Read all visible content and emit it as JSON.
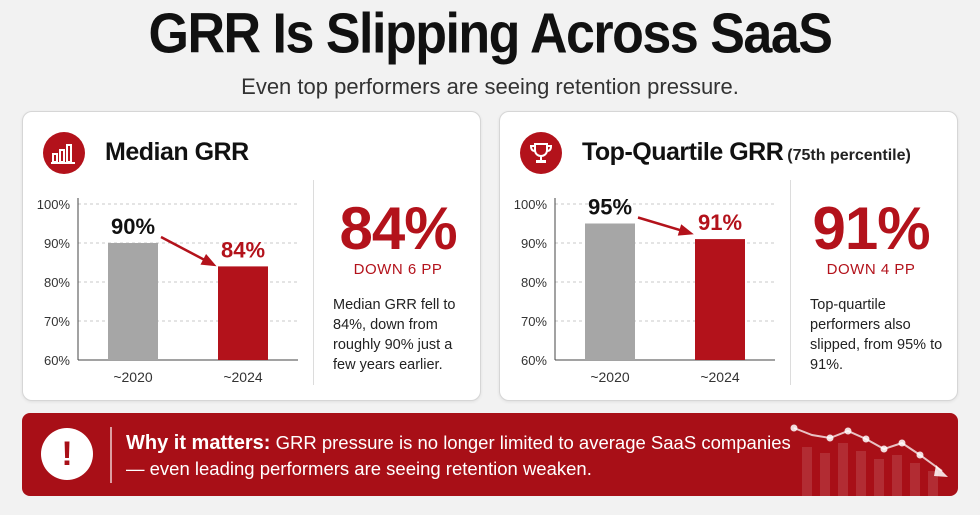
{
  "header": {
    "title": "GRR Is Slipping Across SaaS",
    "subtitle": "Even top performers are seeing retention pressure."
  },
  "colors": {
    "accent": "#b3121b",
    "gray_bar": "#a6a6a6",
    "banner": "#a80f17"
  },
  "panels": [
    {
      "icon": "bar-chart-icon",
      "title": "Median GRR",
      "title_sub": "",
      "stat": "84%",
      "stat_sub": "DOWN 6 PP",
      "description": "Median GRR fell to 84%, down from roughly 90% just a few years earlier."
    },
    {
      "icon": "trophy-icon",
      "title": "Top-Quartile GRR",
      "title_sub": "(75th percentile)",
      "stat": "91%",
      "stat_sub": "DOWN 4 PP",
      "description": "Top-quartile performers also slipped, from 95% to 91%."
    }
  ],
  "chart_data": [
    {
      "type": "bar",
      "categories": [
        "~2020",
        "~2024"
      ],
      "values": [
        90,
        84
      ],
      "data_labels": [
        "90%",
        "84%"
      ],
      "ylim": [
        60,
        100
      ],
      "yticks": [
        "60%",
        "70%",
        "80%",
        "90%",
        "100%"
      ],
      "ytick_values": [
        60,
        70,
        80,
        90,
        100
      ],
      "grid": true,
      "bar_colors": [
        "#a6a6a6",
        "#b3121b"
      ]
    },
    {
      "type": "bar",
      "categories": [
        "~2020",
        "~2024"
      ],
      "values": [
        95,
        91
      ],
      "data_labels": [
        "95%",
        "91%"
      ],
      "ylim": [
        60,
        100
      ],
      "yticks": [
        "60%",
        "70%",
        "80%",
        "90%",
        "100%"
      ],
      "ytick_values": [
        60,
        70,
        80,
        90,
        100
      ],
      "grid": true,
      "bar_colors": [
        "#a6a6a6",
        "#b3121b"
      ]
    }
  ],
  "banner": {
    "icon": "exclamation-icon",
    "lead": "Why it matters:",
    "text": "GRR pressure is no longer limited to average SaaS companies — even leading performers are seeing retention weaken."
  }
}
